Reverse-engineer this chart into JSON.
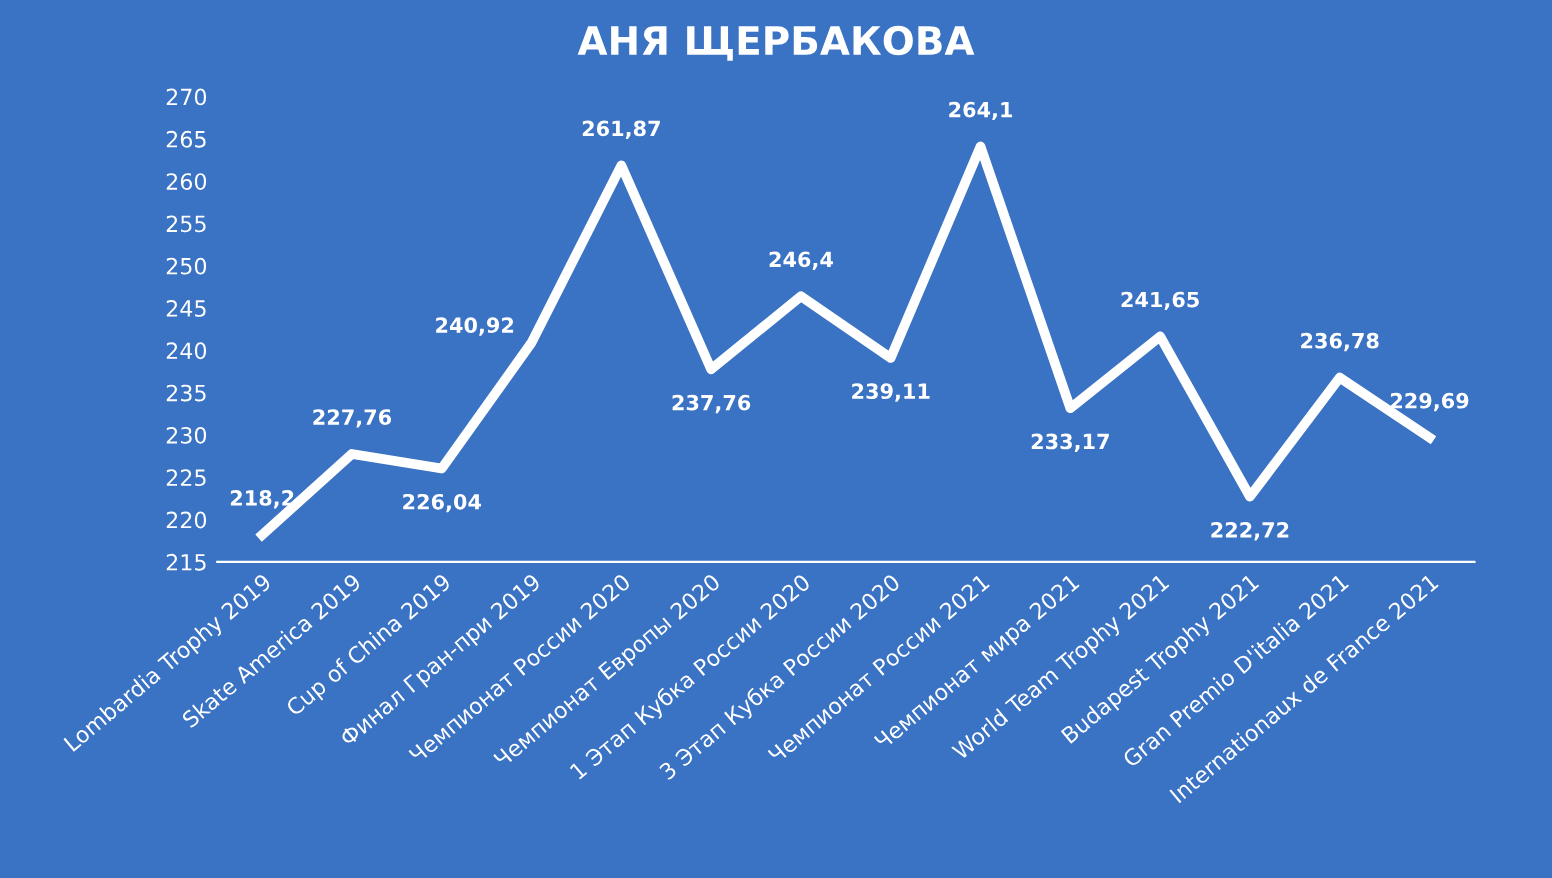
{
  "chart_data": {
    "type": "line",
    "title": "АНЯ ЩЕРБАКОВА",
    "categories": [
      "Lombardia Trophy 2019",
      "Skate America 2019",
      "Cup of China 2019",
      "Финал Гран-при 2019",
      "Чемпионат России 2020",
      "Чемпионат Европы 2020",
      "1 Этап Кубка России 2020",
      "3 Этап Кубка России 2020",
      "Чемпионат России 2021",
      "Чемпионат мира 2021",
      "World Team Trophy 2021",
      "Budapest Trophy 2021",
      "Gran Premio D'italia 2021",
      "Internationaux de France 2021"
    ],
    "series": [
      {
        "color": "#ffffff",
        "values": [
          218.2,
          227.76,
          226.04,
          240.92,
          261.87,
          237.76,
          246.4,
          239.11,
          264.1,
          233.17,
          241.65,
          222.72,
          236.78,
          229.69
        ],
        "value_labels": [
          "218,2",
          "227,76",
          "226,04",
          "240,92",
          "261,87",
          "237,76",
          "246,4",
          "239,11",
          "264,1",
          "233,17",
          "241,65",
          "222,72",
          "236,78",
          "229,69"
        ]
      }
    ],
    "ylim": [
      215,
      270
    ],
    "yticks": [
      215,
      220,
      225,
      230,
      235,
      240,
      245,
      250,
      255,
      260,
      265,
      270
    ],
    "grid": false,
    "legend": false,
    "marker": "none",
    "line_style": "solid"
  }
}
